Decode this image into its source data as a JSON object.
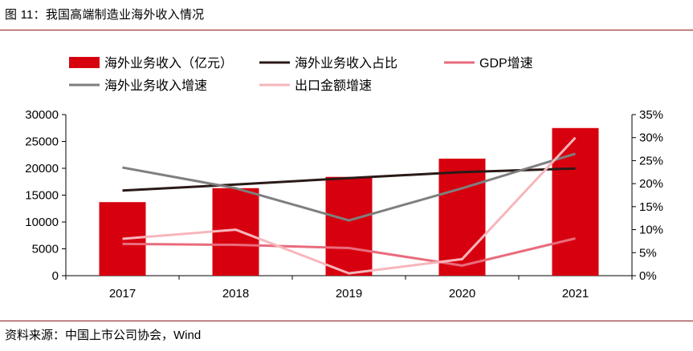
{
  "figure": {
    "title": "图 11：我国高端制造业海外收入情况",
    "source": "资料来源：中国上市公司协会，Wind"
  },
  "chart_data": {
    "type": "bar",
    "title": "我国高端制造业海外收入情况",
    "categories": [
      "2017",
      "2018",
      "2019",
      "2020",
      "2021"
    ],
    "series": [
      {
        "name": "海外业务收入（亿元）",
        "type": "bar",
        "axis": "left",
        "color": "#d7000f",
        "values": [
          13700,
          16300,
          18400,
          21800,
          27500
        ]
      },
      {
        "name": "海外业务收入占比",
        "type": "line",
        "axis": "right",
        "color": "#2b1a17",
        "values": [
          18.5,
          19.8,
          21.2,
          22.5,
          23.3
        ]
      },
      {
        "name": "GDP增速",
        "type": "line",
        "axis": "right",
        "color": "#e96b7c",
        "values": [
          6.9,
          6.7,
          6.0,
          2.2,
          8.1
        ]
      },
      {
        "name": "海外业务收入增速",
        "type": "line",
        "axis": "right",
        "color": "#7f7f7f",
        "values": [
          23.5,
          19.0,
          12.0,
          19.0,
          26.5
        ]
      },
      {
        "name": "出口金额增速",
        "type": "line",
        "axis": "right",
        "color": "#f7b6bb",
        "values": [
          8.0,
          10.0,
          0.5,
          3.6,
          30.0
        ]
      }
    ],
    "left_axis": {
      "min": 0,
      "max": 30000,
      "ticks": [
        "0",
        "5000",
        "10000",
        "15000",
        "20000",
        "25000",
        "30000"
      ]
    },
    "right_axis": {
      "min": 0,
      "max": 35,
      "ticks": [
        "0%",
        "5%",
        "10%",
        "15%",
        "20%",
        "25%",
        "30%",
        "35%"
      ]
    },
    "legend": {
      "position": "top"
    },
    "grid": false
  }
}
